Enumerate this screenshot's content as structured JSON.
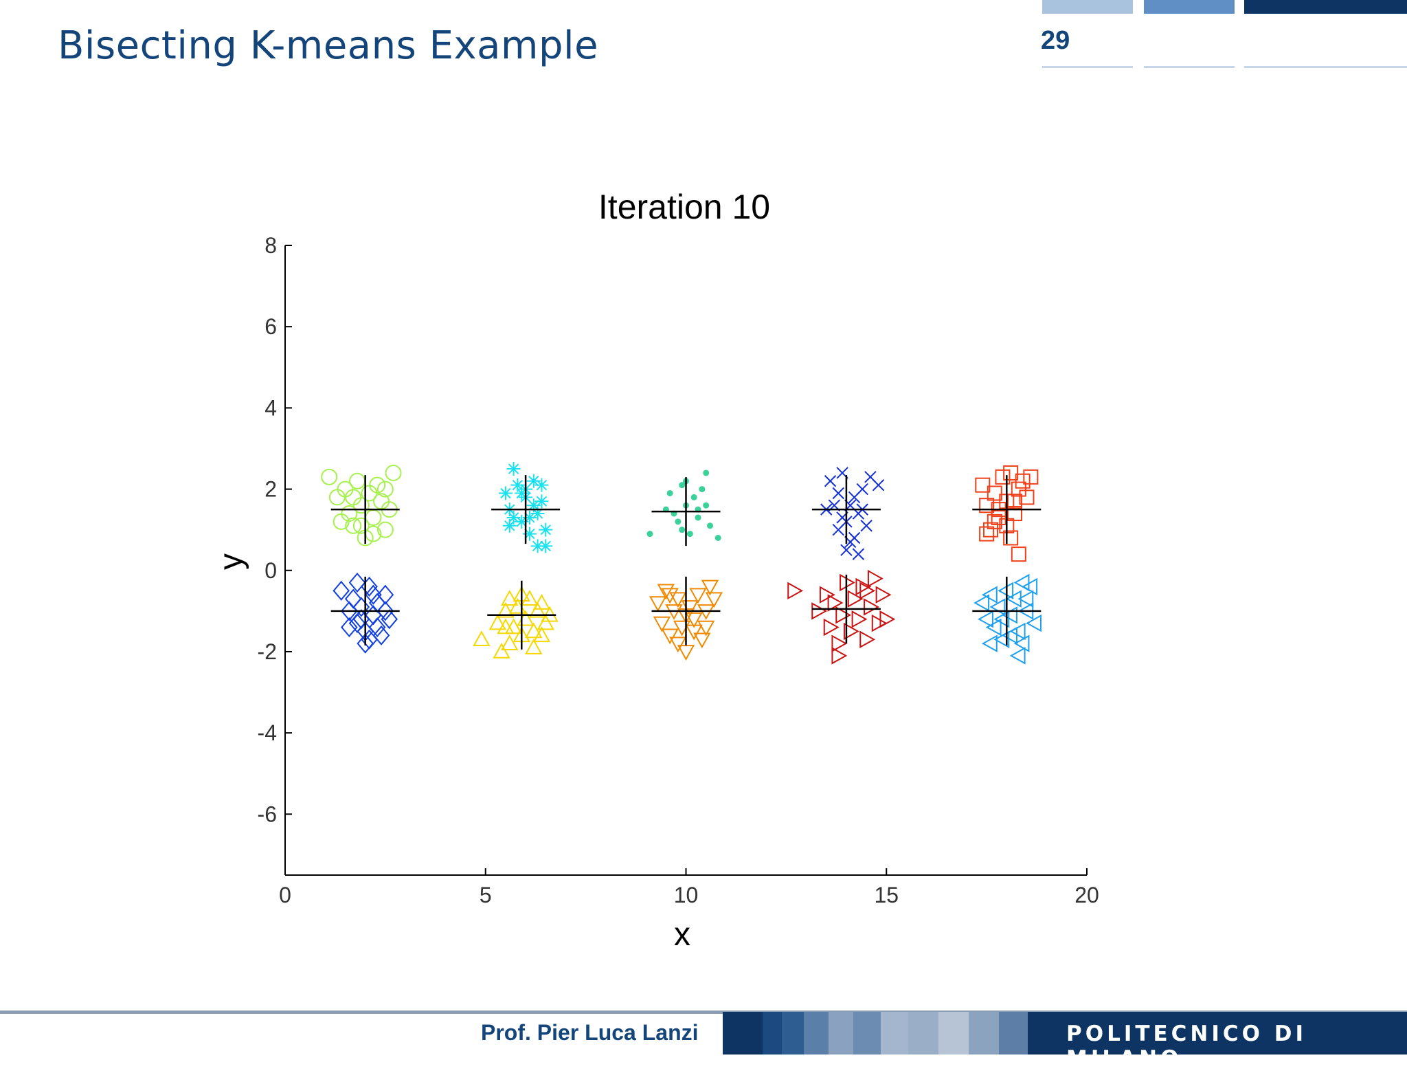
{
  "slide": {
    "title": "Bisecting K-means Example",
    "number": "29",
    "author": "Prof. Pier Luca Lanzi",
    "institution": "POLITECNICO DI MILANO",
    "colors": {
      "title": "#14457a",
      "footer_dark": "#0d3462"
    }
  },
  "chart_data": {
    "type": "scatter",
    "title": "Iteration 10",
    "xlabel": "x",
    "ylabel": "y",
    "xlim": [
      0,
      20
    ],
    "ylim": [
      -7.5,
      8
    ],
    "xticks": [
      "0",
      "5",
      "10",
      "15",
      "20"
    ],
    "yticks": [
      "8",
      "6",
      "4",
      "2",
      "0",
      "-2",
      "-4",
      "-6"
    ],
    "grid": false,
    "legend": "none",
    "clusters": [
      {
        "marker": "circle",
        "color": "#a6f14d",
        "center": [
          2.0,
          1.5
        ],
        "points": [
          [
            1.1,
            2.3
          ],
          [
            1.3,
            1.8
          ],
          [
            1.5,
            2.0
          ],
          [
            1.6,
            1.4
          ],
          [
            1.7,
            1.1
          ],
          [
            1.8,
            2.2
          ],
          [
            1.9,
            1.6
          ],
          [
            2.0,
            0.8
          ],
          [
            2.1,
            1.9
          ],
          [
            2.2,
            1.3
          ],
          [
            2.3,
            2.1
          ],
          [
            2.4,
            1.7
          ],
          [
            2.5,
            1.0
          ],
          [
            2.6,
            1.5
          ],
          [
            2.7,
            2.4
          ],
          [
            1.4,
            1.2
          ],
          [
            2.2,
            0.9
          ],
          [
            1.9,
            1.1
          ],
          [
            2.5,
            2.0
          ],
          [
            1.7,
            1.8
          ]
        ]
      },
      {
        "marker": "star",
        "color": "#19e1ee",
        "center": [
          6.0,
          1.5
        ],
        "points": [
          [
            5.7,
            2.5
          ],
          [
            5.5,
            1.9
          ],
          [
            5.6,
            1.5
          ],
          [
            5.8,
            2.1
          ],
          [
            5.9,
            1.2
          ],
          [
            6.0,
            1.8
          ],
          [
            6.1,
            0.9
          ],
          [
            6.2,
            2.2
          ],
          [
            6.3,
            1.4
          ],
          [
            6.4,
            1.7
          ],
          [
            6.5,
            1.0
          ],
          [
            6.3,
            0.6
          ],
          [
            6.5,
            0.6
          ],
          [
            5.7,
            1.3
          ],
          [
            6.0,
            2.0
          ],
          [
            6.2,
            1.6
          ],
          [
            5.9,
            1.9
          ],
          [
            6.4,
            2.1
          ],
          [
            5.6,
            1.1
          ],
          [
            6.1,
            1.3
          ]
        ]
      },
      {
        "marker": "dot",
        "color": "#3ad19a",
        "center": [
          10.0,
          1.45
        ],
        "points": [
          [
            9.1,
            0.9
          ],
          [
            9.5,
            1.5
          ],
          [
            9.6,
            1.9
          ],
          [
            9.8,
            1.2
          ],
          [
            9.9,
            2.1
          ],
          [
            10.0,
            1.6
          ],
          [
            10.1,
            0.9
          ],
          [
            10.2,
            1.8
          ],
          [
            10.3,
            1.3
          ],
          [
            10.4,
            2.0
          ],
          [
            10.5,
            2.4
          ],
          [
            10.6,
            1.1
          ],
          [
            10.8,
            0.8
          ],
          [
            9.7,
            1.4
          ],
          [
            10.0,
            2.2
          ],
          [
            10.3,
            1.5
          ],
          [
            9.9,
            1.0
          ],
          [
            10.5,
            1.6
          ]
        ]
      },
      {
        "marker": "x",
        "color": "#1530d8",
        "center": [
          14.0,
          1.5
        ],
        "points": [
          [
            13.6,
            2.2
          ],
          [
            13.7,
            1.6
          ],
          [
            13.8,
            1.9
          ],
          [
            13.9,
            2.4
          ],
          [
            14.0,
            1.2
          ],
          [
            14.1,
            0.7
          ],
          [
            14.2,
            1.8
          ],
          [
            14.3,
            1.4
          ],
          [
            14.4,
            2.0
          ],
          [
            14.5,
            1.1
          ],
          [
            14.6,
            2.3
          ],
          [
            14.8,
            2.1
          ],
          [
            14.0,
            0.5
          ],
          [
            14.2,
            0.8
          ],
          [
            13.5,
            1.5
          ],
          [
            13.9,
            1.3
          ],
          [
            14.3,
            0.4
          ],
          [
            14.1,
            1.6
          ],
          [
            13.8,
            1.0
          ],
          [
            14.4,
            1.5
          ]
        ]
      },
      {
        "marker": "square",
        "color": "#f0401a",
        "center": [
          18.0,
          1.5
        ],
        "points": [
          [
            17.4,
            2.1
          ],
          [
            17.5,
            1.6
          ],
          [
            17.6,
            1.0
          ],
          [
            17.7,
            1.9
          ],
          [
            17.8,
            1.3
          ],
          [
            17.9,
            2.3
          ],
          [
            18.0,
            1.7
          ],
          [
            18.1,
            0.8
          ],
          [
            18.2,
            1.4
          ],
          [
            18.3,
            2.0
          ],
          [
            18.4,
            2.2
          ],
          [
            18.5,
            1.8
          ],
          [
            18.6,
            2.3
          ],
          [
            18.3,
            0.4
          ],
          [
            17.5,
            0.9
          ],
          [
            18.0,
            1.1
          ],
          [
            17.8,
            1.5
          ],
          [
            18.2,
            1.7
          ],
          [
            18.1,
            2.4
          ],
          [
            17.7,
            1.2
          ]
        ]
      },
      {
        "marker": "diamond",
        "color": "#1240e0",
        "center": [
          2.0,
          -1.0
        ],
        "points": [
          [
            1.4,
            -0.5
          ],
          [
            1.6,
            -1.0
          ],
          [
            1.7,
            -0.7
          ],
          [
            1.8,
            -1.3
          ],
          [
            1.9,
            -0.9
          ],
          [
            2.0,
            -1.5
          ],
          [
            2.1,
            -0.4
          ],
          [
            2.2,
            -1.1
          ],
          [
            2.3,
            -0.8
          ],
          [
            2.4,
            -1.6
          ],
          [
            2.5,
            -0.6
          ],
          [
            2.6,
            -1.2
          ],
          [
            2.0,
            -1.8
          ],
          [
            1.8,
            -0.3
          ],
          [
            2.3,
            -1.4
          ],
          [
            1.6,
            -1.4
          ],
          [
            2.2,
            -0.6
          ],
          [
            1.9,
            -1.2
          ],
          [
            2.5,
            -1.0
          ],
          [
            2.1,
            -1.7
          ]
        ]
      },
      {
        "marker": "triangle-up",
        "color": "#f5d800",
        "center": [
          5.9,
          -1.1
        ],
        "points": [
          [
            4.9,
            -1.7
          ],
          [
            5.3,
            -1.3
          ],
          [
            5.4,
            -2.0
          ],
          [
            5.5,
            -1.0
          ],
          [
            5.6,
            -0.7
          ],
          [
            5.7,
            -1.4
          ],
          [
            5.8,
            -0.9
          ],
          [
            5.9,
            -1.6
          ],
          [
            6.0,
            -1.2
          ],
          [
            6.1,
            -0.7
          ],
          [
            6.2,
            -1.5
          ],
          [
            6.3,
            -1.0
          ],
          [
            6.4,
            -0.8
          ],
          [
            6.5,
            -1.3
          ],
          [
            6.6,
            -1.1
          ],
          [
            5.6,
            -1.8
          ],
          [
            6.2,
            -1.9
          ],
          [
            5.9,
            -0.6
          ],
          [
            6.4,
            -1.6
          ],
          [
            5.5,
            -1.4
          ]
        ]
      },
      {
        "marker": "triangle-down",
        "color": "#f08a00",
        "center": [
          10.0,
          -1.0
        ],
        "points": [
          [
            9.3,
            -0.8
          ],
          [
            9.4,
            -1.3
          ],
          [
            9.5,
            -0.5
          ],
          [
            9.6,
            -1.6
          ],
          [
            9.7,
            -1.0
          ],
          [
            9.8,
            -0.7
          ],
          [
            9.9,
            -1.4
          ],
          [
            10.0,
            -2.0
          ],
          [
            10.1,
            -0.9
          ],
          [
            10.2,
            -1.2
          ],
          [
            10.3,
            -0.6
          ],
          [
            10.4,
            -1.7
          ],
          [
            10.5,
            -1.0
          ],
          [
            10.6,
            -0.4
          ],
          [
            10.7,
            -0.7
          ],
          [
            10.2,
            -1.5
          ],
          [
            9.8,
            -1.8
          ],
          [
            10.5,
            -1.4
          ],
          [
            9.6,
            -0.6
          ],
          [
            10.0,
            -1.1
          ]
        ]
      },
      {
        "marker": "triangle-right",
        "color": "#cc1111",
        "center": [
          14.0,
          -0.95
        ],
        "points": [
          [
            12.7,
            -0.5
          ],
          [
            13.3,
            -1.0
          ],
          [
            13.5,
            -0.6
          ],
          [
            13.6,
            -1.4
          ],
          [
            13.7,
            -0.8
          ],
          [
            13.8,
            -1.8
          ],
          [
            13.9,
            -1.1
          ],
          [
            14.0,
            -0.3
          ],
          [
            14.1,
            -1.5
          ],
          [
            14.2,
            -0.7
          ],
          [
            14.3,
            -1.2
          ],
          [
            14.4,
            -0.4
          ],
          [
            14.5,
            -1.7
          ],
          [
            14.6,
            -0.9
          ],
          [
            14.7,
            -0.2
          ],
          [
            14.8,
            -1.3
          ],
          [
            14.9,
            -0.6
          ],
          [
            15.0,
            -1.2
          ],
          [
            13.8,
            -2.1
          ],
          [
            14.5,
            -0.5
          ]
        ]
      },
      {
        "marker": "triangle-left",
        "color": "#1ca0ef",
        "center": [
          18.0,
          -1.0
        ],
        "points": [
          [
            17.4,
            -0.8
          ],
          [
            17.5,
            -1.2
          ],
          [
            17.6,
            -0.6
          ],
          [
            17.7,
            -1.4
          ],
          [
            17.8,
            -0.9
          ],
          [
            17.9,
            -1.7
          ],
          [
            18.0,
            -0.5
          ],
          [
            18.1,
            -1.1
          ],
          [
            18.2,
            -0.7
          ],
          [
            18.3,
            -1.5
          ],
          [
            18.4,
            -0.3
          ],
          [
            18.5,
            -1.0
          ],
          [
            18.6,
            -0.4
          ],
          [
            18.7,
            -1.3
          ],
          [
            18.3,
            -2.1
          ],
          [
            17.6,
            -1.8
          ],
          [
            18.1,
            -1.6
          ],
          [
            18.5,
            -0.7
          ],
          [
            17.9,
            -1.2
          ],
          [
            18.4,
            -1.8
          ]
        ]
      }
    ]
  }
}
